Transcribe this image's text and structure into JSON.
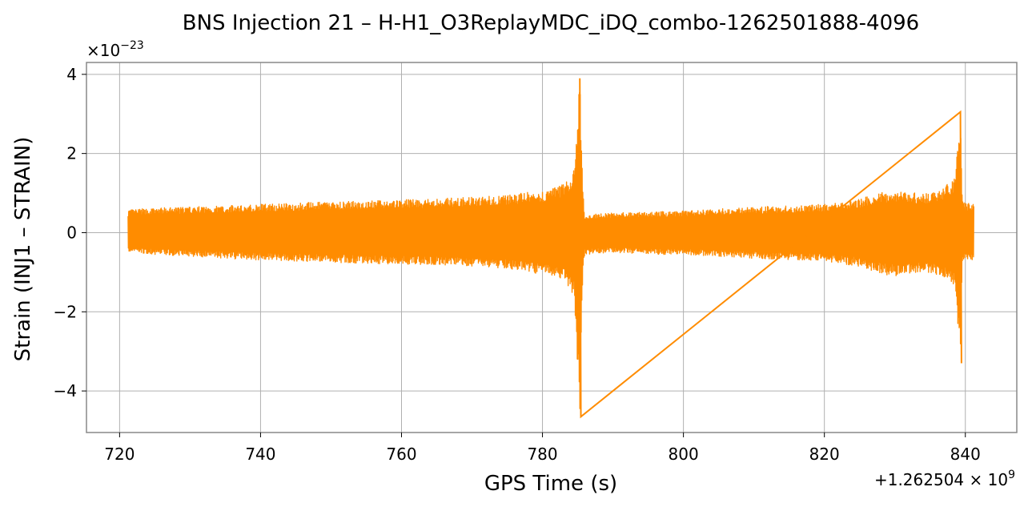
{
  "chart_data": {
    "type": "line",
    "title": "BNS Injection 21 – H-H1_O3ReplayMDC_iDQ_combo-1262501888-4096",
    "xlabel": "GPS Time (s)",
    "ylabel": "Strain (INJ1 – STRAIN)",
    "x_offset_label": "+1.262504 × 10^9",
    "y_scale_label": "×10^−23",
    "xlim": [
      715.3,
      847.3
    ],
    "ylim": [
      -5.05,
      4.3
    ],
    "x_ticks": [
      720,
      740,
      760,
      780,
      800,
      820,
      840
    ],
    "x_tick_labels": [
      "720",
      "740",
      "760",
      "780",
      "800",
      "820",
      "840"
    ],
    "y_ticks": [
      -4,
      -2,
      0,
      2,
      4
    ],
    "y_tick_labels": [
      "−4",
      "−2",
      "0",
      "2",
      "4"
    ],
    "grid": true,
    "color": "#ff8c00",
    "series": [
      {
        "x": [
          721.2,
          725,
          730,
          735,
          740,
          745,
          750,
          755,
          760,
          765,
          770,
          775,
          778,
          780,
          782,
          783.5,
          784.5,
          785.3,
          785.7,
          786,
          790,
          795,
          800,
          805,
          810,
          815,
          820,
          825,
          828,
          830,
          833,
          835,
          837,
          838.5,
          839.3,
          839.6,
          840,
          841.2
        ],
        "y_upper": [
          0.58,
          0.62,
          0.65,
          0.68,
          0.72,
          0.75,
          0.78,
          0.8,
          0.83,
          0.86,
          0.9,
          0.95,
          1.02,
          1.05,
          1.15,
          1.3,
          1.6,
          3.9,
          1.2,
          0.45,
          0.5,
          0.52,
          0.55,
          0.6,
          0.65,
          0.68,
          0.72,
          0.85,
          1.02,
          1.05,
          1.0,
          0.98,
          1.15,
          1.4,
          3.05,
          0.8,
          0.75,
          0.75
        ],
        "y_lower": [
          -0.5,
          -0.55,
          -0.6,
          -0.65,
          -0.7,
          -0.72,
          -0.75,
          -0.78,
          -0.8,
          -0.82,
          -0.85,
          -0.9,
          -1.0,
          -1.05,
          -1.15,
          -1.3,
          -1.7,
          -4.65,
          -1.2,
          -0.55,
          -0.5,
          -0.55,
          -0.55,
          -0.6,
          -0.65,
          -0.68,
          -0.72,
          -0.85,
          -1.05,
          -1.1,
          -1.05,
          -1.0,
          -1.15,
          -1.4,
          -3.3,
          -0.7,
          -0.7,
          -0.7
        ]
      }
    ]
  }
}
